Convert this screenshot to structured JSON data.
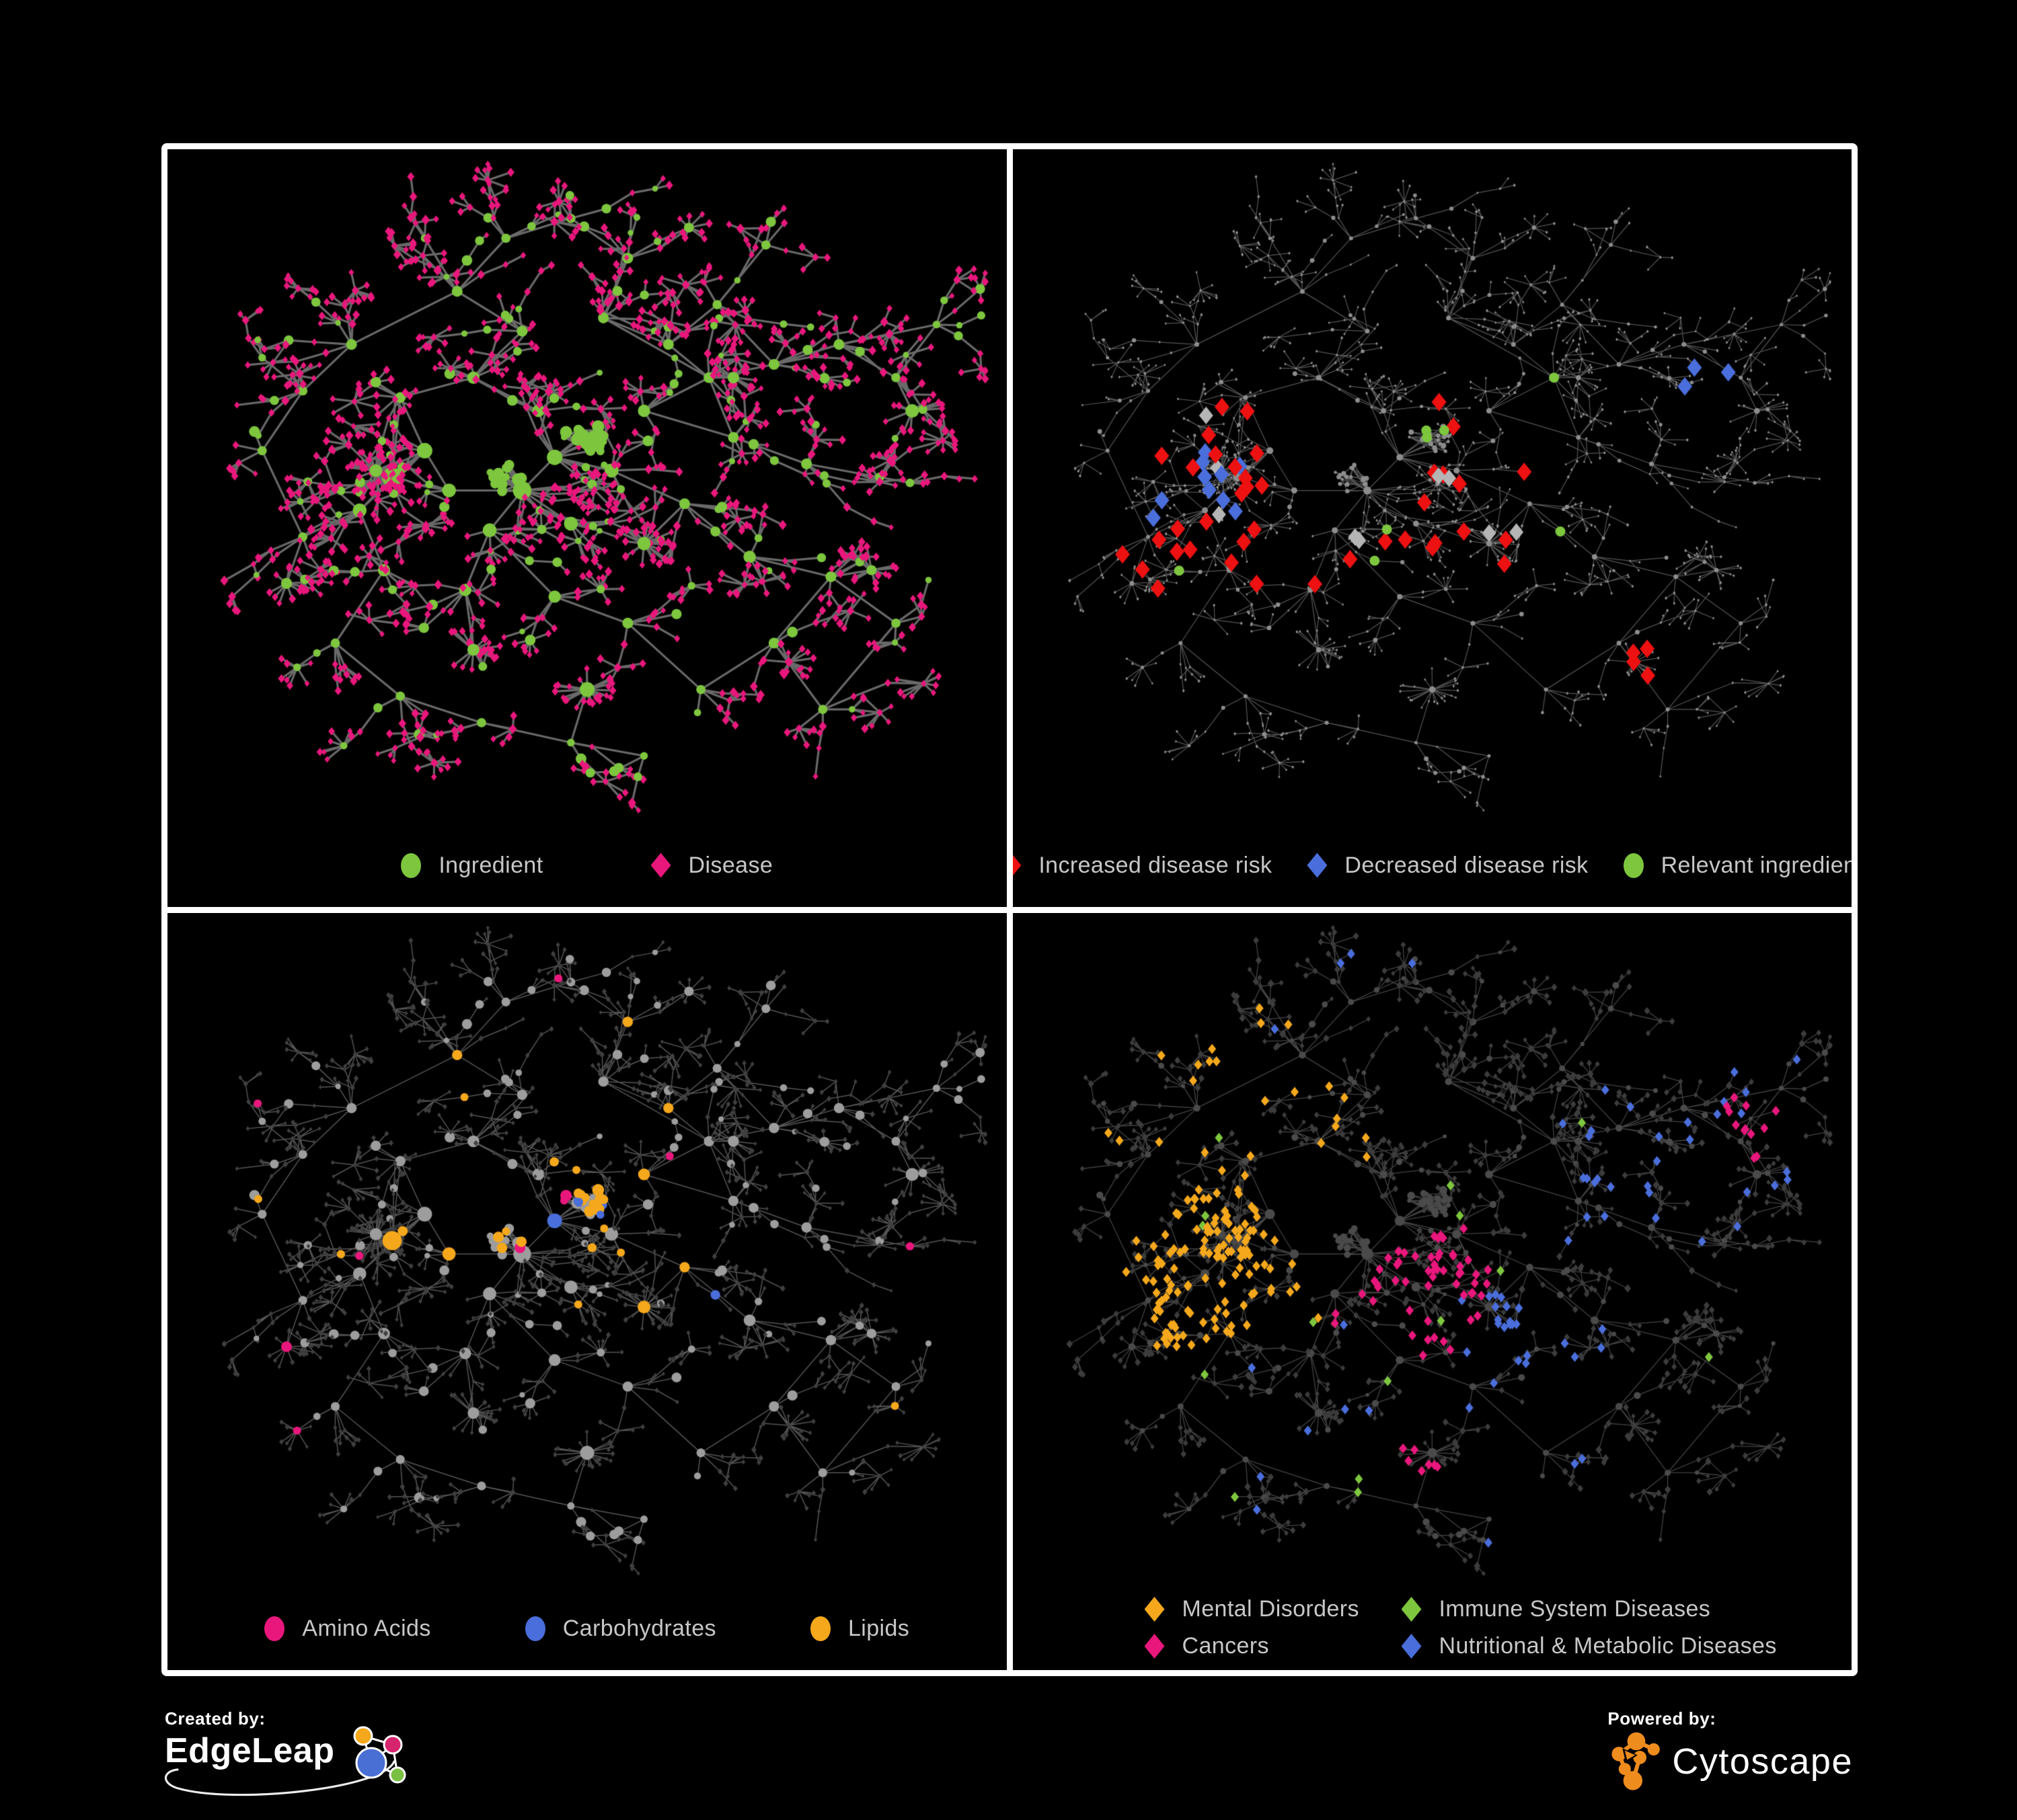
{
  "figure": {
    "background": "#000000",
    "panel_border_color": "#ffffff",
    "legend_text_color": "#c7c7c7"
  },
  "panels": [
    {
      "name": "ingredient-disease-network",
      "legend": [
        {
          "label": "Ingredient",
          "shape": "circle",
          "color": "#7dc63e"
        },
        {
          "label": "Disease",
          "shape": "diamond",
          "color": "#e9177c"
        }
      ]
    },
    {
      "name": "disease-risk-network",
      "legend": [
        {
          "label": "Increased disease risk",
          "shape": "diamond",
          "color": "#ee1111"
        },
        {
          "label": "Decreased disease risk",
          "shape": "diamond",
          "color": "#4a6edb"
        },
        {
          "label": "Relevant ingredient",
          "shape": "circle",
          "color": "#7dc63e"
        }
      ]
    },
    {
      "name": "nutrient-class-network",
      "legend": [
        {
          "label": "Amino Acids",
          "shape": "circle",
          "color": "#e9177c"
        },
        {
          "label": "Carbohydrates",
          "shape": "circle",
          "color": "#4a6edb"
        },
        {
          "label": "Lipids",
          "shape": "circle",
          "color": "#f5a81c"
        }
      ]
    },
    {
      "name": "disease-class-network",
      "legend": [
        {
          "label": "Mental Disorders",
          "shape": "diamond",
          "color": "#f5a81c"
        },
        {
          "label": "Immune System Diseases",
          "shape": "diamond",
          "color": "#7dc63e"
        },
        {
          "label": "Cancers",
          "shape": "diamond",
          "color": "#e9177c"
        },
        {
          "label": "Nutritional & Metabolic Diseases",
          "shape": "diamond",
          "color": "#4a6edb"
        }
      ]
    }
  ],
  "footer": {
    "created_by_label": "Created by:",
    "created_by_name": "EdgeLeap",
    "powered_by_label": "Powered by:",
    "powered_by_name": "Cytoscape",
    "edgeleap_colors": {
      "orange": "#f5a81c",
      "pink": "#d6246e",
      "blue": "#4a6fd4",
      "green": "#7ac143"
    },
    "cytoscape_orange": "#ee8c1e"
  },
  "network": {
    "seed": 1337,
    "clusters": [
      [
        0.26,
        0.48,
        8,
        13
      ],
      [
        0.3,
        0.44,
        6,
        10
      ],
      [
        0.22,
        0.53,
        5,
        9
      ],
      [
        0.33,
        0.5,
        5,
        9
      ],
      [
        0.42,
        0.5,
        7,
        12
      ],
      [
        0.46,
        0.45,
        6,
        10
      ],
      [
        0.38,
        0.56,
        5,
        9
      ],
      [
        0.48,
        0.55,
        5,
        9
      ],
      [
        0.53,
        0.47,
        5,
        9
      ],
      [
        0.44,
        0.38,
        5,
        8
      ],
      [
        0.36,
        0.33,
        5,
        8
      ],
      [
        0.42,
        0.26,
        4,
        7
      ],
      [
        0.34,
        0.2,
        4,
        7
      ],
      [
        0.4,
        0.12,
        3,
        6
      ],
      [
        0.48,
        0.09,
        3,
        6
      ],
      [
        0.55,
        0.15,
        4,
        7
      ],
      [
        0.52,
        0.24,
        4,
        7
      ],
      [
        0.6,
        0.28,
        4,
        7
      ],
      [
        0.66,
        0.22,
        3,
        6
      ],
      [
        0.72,
        0.13,
        3,
        6
      ],
      [
        0.65,
        0.33,
        4,
        7
      ],
      [
        0.73,
        0.31,
        4,
        7
      ],
      [
        0.81,
        0.28,
        4,
        7
      ],
      [
        0.88,
        0.33,
        3,
        6
      ],
      [
        0.93,
        0.25,
        3,
        5
      ],
      [
        0.68,
        0.42,
        4,
        7
      ],
      [
        0.77,
        0.46,
        4,
        7
      ],
      [
        0.86,
        0.48,
        3,
        6
      ],
      [
        0.62,
        0.52,
        4,
        7
      ],
      [
        0.7,
        0.6,
        4,
        8
      ],
      [
        0.8,
        0.63,
        3,
        7
      ],
      [
        0.88,
        0.7,
        3,
        6
      ],
      [
        0.73,
        0.73,
        3,
        7
      ],
      [
        0.79,
        0.83,
        3,
        6
      ],
      [
        0.64,
        0.8,
        3,
        6
      ],
      [
        0.55,
        0.7,
        4,
        7
      ],
      [
        0.46,
        0.66,
        4,
        8
      ],
      [
        0.35,
        0.65,
        4,
        8
      ],
      [
        0.25,
        0.62,
        4,
        8
      ],
      [
        0.15,
        0.57,
        3,
        6
      ],
      [
        0.1,
        0.44,
        3,
        6
      ],
      [
        0.15,
        0.35,
        4,
        6
      ],
      [
        0.21,
        0.28,
        4,
        7
      ],
      [
        0.27,
        0.36,
        4,
        7
      ],
      [
        0.19,
        0.73,
        3,
        6
      ],
      [
        0.27,
        0.81,
        3,
        6
      ],
      [
        0.37,
        0.85,
        3,
        6
      ],
      [
        0.48,
        0.88,
        2,
        5
      ],
      [
        0.57,
        0.9,
        2,
        5
      ],
      [
        0.1,
        0.3,
        2,
        5
      ],
      [
        0.57,
        0.38,
        4,
        8
      ],
      [
        0.3,
        0.12,
        2,
        5
      ]
    ],
    "fans": [
      [
        0.57,
        0.58,
        26
      ],
      [
        0.5,
        0.8,
        22
      ],
      [
        0.24,
        0.47,
        26
      ],
      [
        0.68,
        0.33,
        13
      ],
      [
        0.85,
        0.62,
        11
      ],
      [
        0.36,
        0.74,
        14
      ],
      [
        0.9,
        0.38,
        10
      ],
      [
        0.13,
        0.64,
        9
      ]
    ],
    "cores": [
      [
        0.5,
        0.42,
        26,
        0.033
      ],
      [
        0.4,
        0.48,
        18,
        0.028
      ]
    ],
    "styles": [
      {
        "edge": "#6f6f6f",
        "edgeWidth": 3.2,
        "edgeAlpha": 0.95,
        "circle": "#7dc63e",
        "diamond": "#e9177c",
        "circleScale": 1.15,
        "diamondScale": 1.3
      },
      {
        "edge": "#787878",
        "edgeWidth": 1.25,
        "edgeAlpha": 0.7,
        "circle": "#8d8d8d",
        "diamond": "#8d8d8d",
        "circleScale": 0.5,
        "diamondScale": 0.5,
        "highlights": [
          {
            "t": "d",
            "color": "#ee1111",
            "p": 0.085,
            "r": [
              0.07,
              0.62,
              0.36,
              0.66
            ],
            "s": 11
          },
          {
            "t": "d",
            "color": "#4a6edb",
            "p": 0.12,
            "r": [
              0.15,
              0.3,
              0.44,
              0.58
            ],
            "s": 11
          },
          {
            "t": "d",
            "color": "#4a6edb",
            "p": 0.5,
            "r": [
              0.8,
              0.87,
              0.3,
              0.38
            ],
            "s": 11
          },
          {
            "t": "d",
            "color": "#ee1111",
            "p": 0.1,
            "r": [
              0.62,
              0.78,
              0.66,
              0.8
            ],
            "s": 11
          },
          {
            "t": "d",
            "color": "#b5b5b5",
            "p": 0.022,
            "r": [
              0.09,
              0.66,
              0.36,
              0.74
            ],
            "s": 10.5
          },
          {
            "t": "c",
            "color": "#7dc63e",
            "p": 0.085,
            "r": [
              0.09,
              0.66,
              0.33,
              0.68
            ],
            "s": 7.5
          },
          {
            "t": "c",
            "color": "#7dc63e",
            "p": 0.25,
            "r": [
              0.64,
              0.74,
              0.66,
              0.78
            ],
            "s": 7.5
          },
          {
            "t": "c",
            "color": "#7dc63e",
            "p": 0.3,
            "r": [
              0.77,
              0.83,
              0.34,
              0.42
            ],
            "s": 7.5
          }
        ]
      },
      {
        "edge": "#9a9a9a",
        "edgeWidth": 1.5,
        "edgeAlpha": 0.55,
        "circle": "#9d9d9d",
        "diamond": "#3f3f3f",
        "circleScale": 1.1,
        "diamondScale": 0.85,
        "highlights": [
          {
            "t": "c",
            "color": "#f5a81c",
            "p": 0.6,
            "r": [
              0.43,
              0.57,
              0.36,
              0.5
            ],
            "s": 0
          },
          {
            "t": "c",
            "color": "#4a6edb",
            "p": 0.3,
            "r": [
              0.44,
              0.56,
              0.37,
              0.49
            ],
            "s": 0
          },
          {
            "t": "c",
            "color": "#f5a81c",
            "p": 0.5,
            "r": [
              0.5,
              0.61,
              0.57,
              0.67
            ],
            "s": 0
          },
          {
            "t": "c",
            "color": "#f5a81c",
            "p": 0.16,
            "r": [
              0.18,
              0.56,
              0.45,
              0.66
            ],
            "s": 0
          },
          {
            "t": "c",
            "color": "#f5a81c",
            "p": 0.12,
            "r": [
              0.25,
              0.62,
              0.12,
              0.36
            ],
            "s": 0
          },
          {
            "t": "c",
            "color": "#e9177c",
            "p": 0.22,
            "r": [
              0.62,
              0.78,
              0.65,
              0.85
            ],
            "s": 0
          },
          {
            "t": "c",
            "color": "#4a6edb",
            "p": 0.06,
            "r": [
              0.58,
              0.8,
              0.55,
              0.75
            ],
            "s": 0
          },
          {
            "t": "c",
            "color": "#e9177c",
            "p": 0.045,
            "r": [
              0.0,
              1.0,
              0.0,
              1.0
            ],
            "s": 0
          },
          {
            "t": "c",
            "color": "#f5a81c",
            "p": 0.05,
            "r": [
              0.0,
              1.0,
              0.3,
              0.95
            ],
            "s": 0
          }
        ]
      },
      {
        "edge": "#5a5a5a",
        "edgeWidth": 1.3,
        "edgeAlpha": 0.75,
        "circle": "#4a4a4a",
        "diamond": "#3c3c3c",
        "circleScale": 0.75,
        "diamondScale": 1.05,
        "highlights": [
          {
            "t": "d",
            "color": "#f5a81c",
            "p": 0.62,
            "r": [
              0.12,
              0.36,
              0.4,
              0.64
            ],
            "s": 0
          },
          {
            "t": "d",
            "color": "#f5a81c",
            "p": 0.14,
            "r": [
              0.1,
              0.42,
              0.1,
              0.4
            ],
            "s": 0
          },
          {
            "t": "d",
            "color": "#e9177c",
            "p": 0.38,
            "r": [
              0.38,
              0.57,
              0.45,
              0.66
            ],
            "s": 0
          },
          {
            "t": "d",
            "color": "#e9177c",
            "p": 0.32,
            "r": [
              0.42,
              0.57,
              0.76,
              0.92
            ],
            "s": 0
          },
          {
            "t": "d",
            "color": "#e9177c",
            "p": 0.5,
            "r": [
              0.86,
              0.96,
              0.26,
              0.36
            ],
            "s": 0
          },
          {
            "t": "d",
            "color": "#4a6edb",
            "p": 0.5,
            "r": [
              0.53,
              0.65,
              0.56,
              0.7
            ],
            "s": 0
          },
          {
            "t": "d",
            "color": "#4a6edb",
            "p": 0.18,
            "r": [
              0.66,
              0.97,
              0.14,
              0.5
            ],
            "s": 0
          },
          {
            "t": "d",
            "color": "#4a6edb",
            "p": 0.12,
            "r": [
              0.1,
              0.55,
              0.03,
              0.2
            ],
            "s": 0
          },
          {
            "t": "d",
            "color": "#4a6edb",
            "p": 0.07,
            "r": [
              0.18,
              0.72,
              0.6,
              0.97
            ],
            "s": 0
          },
          {
            "t": "d",
            "color": "#7dc63e",
            "p": 0.015,
            "r": [
              0.2,
              0.85,
              0.2,
              0.9
            ],
            "s": 0
          }
        ]
      }
    ]
  }
}
